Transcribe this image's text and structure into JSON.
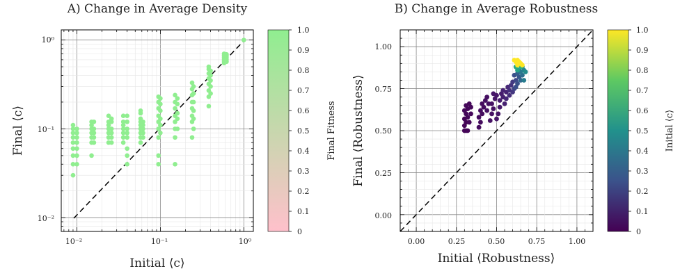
{
  "chart_data": [
    {
      "type": "scatter",
      "title": "A) Change in Average Density",
      "xlabel": "Initial ⟨c⟩",
      "ylabel": "Final ⟨c⟩",
      "xscale": "log",
      "yscale": "log",
      "xlim": [
        0.0065,
        1.3
      ],
      "ylim": [
        0.007,
        1.3
      ],
      "xticks": [
        0.01,
        0.1,
        1
      ],
      "xtick_labels": [
        "10⁻²",
        "10⁻¹",
        "10⁰"
      ],
      "yticks": [
        0.01,
        0.1,
        1
      ],
      "ytick_labels": [
        "10⁻²",
        "10⁻¹",
        "10⁰"
      ],
      "grid": true,
      "reference_line": "y = x (dashed)",
      "marker_color": "#90ee90",
      "colorbar": {
        "label": "Final Fitness",
        "range": [
          0,
          1
        ],
        "ticks": [
          "0",
          "0.1",
          "0.2",
          "0.3",
          "0.4",
          "0.5",
          "0.6",
          "0.7",
          "0.8",
          "0.9",
          "1.0"
        ],
        "color_low": "#ffc0cb",
        "color_high": "#90ee90"
      },
      "groups": [
        {
          "x": 0.009,
          "y": [
            0.03,
            0.04,
            0.05,
            0.06,
            0.07,
            0.08,
            0.09,
            0.1,
            0.11
          ]
        },
        {
          "x": 0.01,
          "y": [
            0.04,
            0.05,
            0.06,
            0.07,
            0.08,
            0.09,
            0.1
          ]
        },
        {
          "x": 0.015,
          "y": [
            0.05,
            0.07,
            0.08,
            0.09,
            0.1,
            0.11,
            0.12
          ]
        },
        {
          "x": 0.016,
          "y": [
            0.07,
            0.08,
            0.09,
            0.1,
            0.12
          ]
        },
        {
          "x": 0.024,
          "y": [
            0.07,
            0.08,
            0.09,
            0.1,
            0.11,
            0.12,
            0.14
          ]
        },
        {
          "x": 0.026,
          "y": [
            0.07,
            0.08,
            0.09,
            0.1,
            0.12,
            0.13
          ]
        },
        {
          "x": 0.036,
          "y": [
            0.07,
            0.08,
            0.09,
            0.1,
            0.11,
            0.12,
            0.14
          ]
        },
        {
          "x": 0.04,
          "y": [
            0.04,
            0.05,
            0.06,
            0.08,
            0.09,
            0.1,
            0.12,
            0.14
          ]
        },
        {
          "x": 0.058,
          "y": [
            0.07,
            0.08,
            0.09,
            0.1,
            0.11,
            0.12,
            0.13,
            0.15,
            0.16
          ]
        },
        {
          "x": 0.062,
          "y": [
            0.08,
            0.09,
            0.1,
            0.11,
            0.12
          ]
        },
        {
          "x": 0.095,
          "y": [
            0.04,
            0.05,
            0.08,
            0.1,
            0.12,
            0.14,
            0.17,
            0.2,
            0.23
          ]
        },
        {
          "x": 0.1,
          "y": [
            0.09,
            0.11,
            0.13,
            0.16,
            0.19,
            0.22
          ]
        },
        {
          "x": 0.15,
          "y": [
            0.04,
            0.08,
            0.1,
            0.12,
            0.14,
            0.17,
            0.2,
            0.24
          ]
        },
        {
          "x": 0.16,
          "y": [
            0.1,
            0.13,
            0.15,
            0.19,
            0.22
          ]
        },
        {
          "x": 0.24,
          "y": [
            0.08,
            0.12,
            0.14,
            0.17,
            0.2,
            0.24,
            0.28,
            0.33
          ]
        },
        {
          "x": 0.25,
          "y": [
            0.1,
            0.13,
            0.16,
            0.2,
            0.25,
            0.3
          ]
        },
        {
          "x": 0.38,
          "y": [
            0.18,
            0.23,
            0.27,
            0.32,
            0.37,
            0.42,
            0.47,
            0.5
          ]
        },
        {
          "x": 0.4,
          "y": [
            0.25,
            0.3,
            0.35,
            0.4,
            0.45
          ]
        },
        {
          "x": 0.58,
          "y": [
            0.55,
            0.58,
            0.61,
            0.64,
            0.67,
            0.7
          ]
        },
        {
          "x": 0.62,
          "y": [
            0.57,
            0.6,
            0.63,
            0.66,
            0.69
          ]
        },
        {
          "x": 1.0,
          "y": [
            1.0
          ]
        }
      ]
    },
    {
      "type": "scatter",
      "title": "B) Change in Average Robustness",
      "xlabel": "Initial ⟨Robustness⟩",
      "ylabel": "Final ⟨Robustness⟩",
      "xlim": [
        -0.1,
        1.1
      ],
      "ylim": [
        -0.1,
        1.1
      ],
      "xticks": [
        0,
        0.25,
        0.5,
        0.75,
        1
      ],
      "xtick_labels": [
        "0.00",
        "0.25",
        "0.50",
        "0.75",
        "1.00"
      ],
      "yticks": [
        0,
        0.25,
        0.5,
        0.75,
        1
      ],
      "ytick_labels": [
        "0.00",
        "0.25",
        "0.50",
        "0.75",
        "1.00"
      ],
      "grid": true,
      "reference_line": "y = x (dashed)",
      "colormap": "viridis",
      "colorbar": {
        "label": "Initial ⟨c⟩",
        "range": [
          0,
          1
        ],
        "ticks": [
          "0",
          "0.1",
          "0.2",
          "0.3",
          "0.4",
          "0.5",
          "0.6",
          "0.7",
          "0.8",
          "0.9",
          "1.0"
        ]
      },
      "points": [
        [
          0.3,
          0.5,
          0.01
        ],
        [
          0.31,
          0.5,
          0.01
        ],
        [
          0.32,
          0.5,
          0.01
        ],
        [
          0.3,
          0.53,
          0.01
        ],
        [
          0.31,
          0.55,
          0.01
        ],
        [
          0.3,
          0.57,
          0.01
        ],
        [
          0.32,
          0.58,
          0.02
        ],
        [
          0.31,
          0.6,
          0.02
        ],
        [
          0.3,
          0.62,
          0.02
        ],
        [
          0.32,
          0.63,
          0.02
        ],
        [
          0.31,
          0.65,
          0.02
        ],
        [
          0.33,
          0.66,
          0.02
        ],
        [
          0.33,
          0.55,
          0.02
        ],
        [
          0.34,
          0.6,
          0.02
        ],
        [
          0.34,
          0.64,
          0.02
        ],
        [
          0.39,
          0.52,
          0.03
        ],
        [
          0.4,
          0.55,
          0.03
        ],
        [
          0.39,
          0.58,
          0.03
        ],
        [
          0.41,
          0.6,
          0.03
        ],
        [
          0.4,
          0.62,
          0.03
        ],
        [
          0.42,
          0.64,
          0.03
        ],
        [
          0.41,
          0.66,
          0.03
        ],
        [
          0.43,
          0.68,
          0.04
        ],
        [
          0.44,
          0.62,
          0.04
        ],
        [
          0.45,
          0.66,
          0.04
        ],
        [
          0.44,
          0.7,
          0.04
        ],
        [
          0.46,
          0.56,
          0.05
        ],
        [
          0.47,
          0.6,
          0.05
        ],
        [
          0.48,
          0.63,
          0.05
        ],
        [
          0.47,
          0.66,
          0.05
        ],
        [
          0.49,
          0.69,
          0.06
        ],
        [
          0.5,
          0.71,
          0.06
        ],
        [
          0.48,
          0.72,
          0.06
        ],
        [
          0.5,
          0.57,
          0.06
        ],
        [
          0.51,
          0.6,
          0.06
        ],
        [
          0.52,
          0.64,
          0.07
        ],
        [
          0.52,
          0.68,
          0.08
        ],
        [
          0.53,
          0.72,
          0.08
        ],
        [
          0.54,
          0.7,
          0.09
        ],
        [
          0.55,
          0.66,
          0.09
        ],
        [
          0.54,
          0.74,
          0.1
        ],
        [
          0.56,
          0.73,
          0.1
        ],
        [
          0.56,
          0.69,
          0.11
        ],
        [
          0.57,
          0.76,
          0.11
        ],
        [
          0.58,
          0.71,
          0.13
        ],
        [
          0.58,
          0.74,
          0.14
        ],
        [
          0.59,
          0.77,
          0.15
        ],
        [
          0.6,
          0.73,
          0.16
        ],
        [
          0.6,
          0.79,
          0.17
        ],
        [
          0.61,
          0.75,
          0.2
        ],
        [
          0.62,
          0.8,
          0.22
        ],
        [
          0.61,
          0.83,
          0.24
        ],
        [
          0.63,
          0.78,
          0.25
        ],
        [
          0.62,
          0.76,
          0.24
        ],
        [
          0.64,
          0.82,
          0.27
        ],
        [
          0.63,
          0.84,
          0.3
        ],
        [
          0.65,
          0.8,
          0.33
        ],
        [
          0.66,
          0.83,
          0.36
        ],
        [
          0.64,
          0.86,
          0.38
        ],
        [
          0.65,
          0.85,
          0.4
        ],
        [
          0.67,
          0.86,
          0.45
        ],
        [
          0.66,
          0.88,
          0.5
        ],
        [
          0.68,
          0.85,
          0.48
        ],
        [
          0.67,
          0.8,
          0.42
        ],
        [
          0.62,
          0.88,
          0.6
        ],
        [
          0.63,
          0.86,
          0.58
        ],
        [
          0.65,
          0.88,
          0.62
        ],
        [
          0.64,
          0.9,
          0.63
        ],
        [
          0.61,
          0.92,
          1.0
        ],
        [
          0.62,
          0.91,
          1.0
        ],
        [
          0.63,
          0.92,
          1.0
        ],
        [
          0.64,
          0.91,
          1.0
        ],
        [
          0.65,
          0.9,
          1.0
        ],
        [
          0.66,
          0.89,
          1.0
        ],
        [
          0.63,
          0.89,
          1.0
        ]
      ]
    }
  ]
}
